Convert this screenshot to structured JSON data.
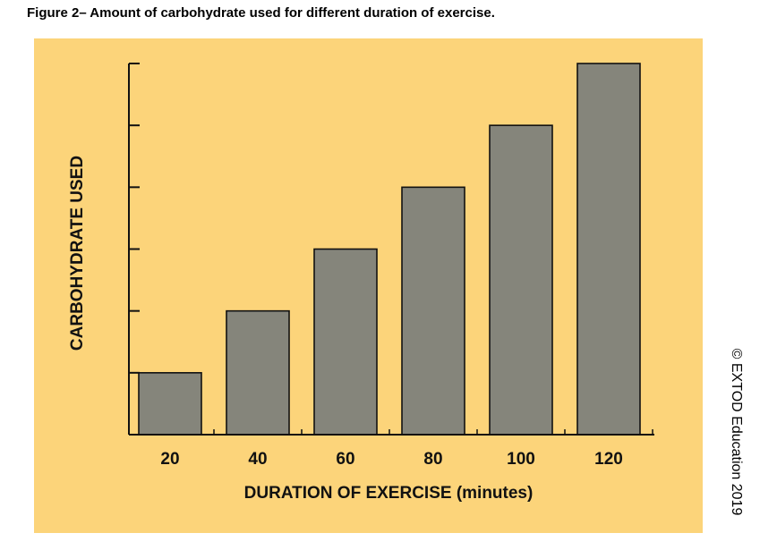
{
  "figure_title": "Figure 2– Amount of carbohydrate used for different duration of exercise.",
  "copyright": "© EXTOD Education 2019",
  "chart_data": {
    "type": "bar",
    "categories": [
      "20",
      "40",
      "60",
      "80",
      "100",
      "120"
    ],
    "values": [
      1,
      2,
      3,
      4,
      5,
      6
    ],
    "title": "",
    "xlabel": "DURATION OF EXERCISE (minutes)",
    "ylabel": "CARBOHYDRATE USED",
    "ylim": [
      0,
      6
    ],
    "grid": false,
    "y_tick_labels_shown": false,
    "colors": {
      "background": "#fcd47a",
      "bar": "#85857b",
      "bar_outline": "#111111",
      "axis": "#111111"
    }
  }
}
